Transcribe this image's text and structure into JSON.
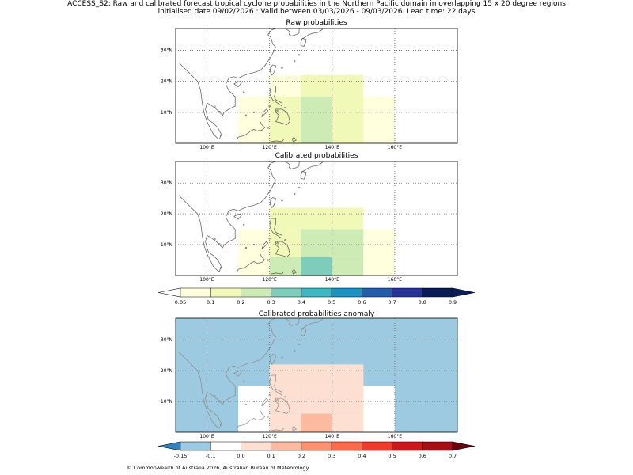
{
  "header": {
    "line1": "ACCESS_S2: Raw and calibrated forecast tropical cyclone probabilities in the Northern Pacific domain in overlapping 15 x 20 degree regions",
    "line2": "initialised date 09/02/2026 :  Valid between 03/03/2026 - 09/03/2026. Lead time: 22 days"
  },
  "colors": {
    "prob": [
      "#ffffdd",
      "#f0f9b8",
      "#cdebb4",
      "#7ecdbb",
      "#40b5c4",
      "#1d91c0",
      "#225ea8",
      "#253494",
      "#081d58"
    ],
    "anom": [
      "#3182bd",
      "#9ecae1",
      "#ffffff",
      "#fee0d2",
      "#fcbba1",
      "#fc9272",
      "#fb6a4a",
      "#ef3b2c",
      "#cb181d",
      "#a50f15",
      "#67000d"
    ],
    "ocean_anom": "#3182bd",
    "coast": "#555555"
  },
  "map_axes": {
    "lon_labels": [
      "100°E",
      "120°E",
      "140°E",
      "160°E"
    ],
    "lat_labels": [
      "10°N",
      "20°N",
      "30°N"
    ]
  },
  "chart_data": [
    {
      "type": "heatmap",
      "title": "Raw probabilities",
      "lon_range": [
        90,
        180
      ],
      "lat_range": [
        0,
        37
      ],
      "cells": [
        {
          "lon": [
            110,
            125
          ],
          "lat": [
            0,
            15
          ],
          "value": 0.05
        },
        {
          "lon": [
            120,
            130
          ],
          "lat": [
            15,
            22
          ],
          "value": 0.05
        },
        {
          "lon": [
            120,
            130
          ],
          "lat": [
            0,
            15
          ],
          "value": 0.1
        },
        {
          "lon": [
            130,
            150
          ],
          "lat": [
            15,
            22
          ],
          "value": 0.1
        },
        {
          "lon": [
            130,
            140
          ],
          "lat": [
            0,
            15
          ],
          "value": 0.2
        },
        {
          "lon": [
            140,
            150
          ],
          "lat": [
            0,
            15
          ],
          "value": 0.1
        },
        {
          "lon": [
            150,
            160
          ],
          "lat": [
            0,
            15
          ],
          "value": 0.05
        }
      ]
    },
    {
      "type": "heatmap",
      "title": "Calibrated probabilities",
      "lon_range": [
        90,
        180
      ],
      "lat_range": [
        0,
        37
      ],
      "cells": [
        {
          "lon": [
            110,
            120
          ],
          "lat": [
            0,
            15
          ],
          "value": 0.05
        },
        {
          "lon": [
            120,
            150
          ],
          "lat": [
            15,
            22
          ],
          "value": 0.1
        },
        {
          "lon": [
            120,
            130
          ],
          "lat": [
            0,
            15
          ],
          "value": 0.1
        },
        {
          "lon": [
            130,
            150
          ],
          "lat": [
            6,
            15
          ],
          "value": 0.2
        },
        {
          "lon": [
            120,
            130
          ],
          "lat": [
            0,
            6
          ],
          "value": 0.2
        },
        {
          "lon": [
            130,
            140
          ],
          "lat": [
            0,
            6
          ],
          "value": 0.3
        },
        {
          "lon": [
            140,
            150
          ],
          "lat": [
            0,
            6
          ],
          "value": 0.2
        },
        {
          "lon": [
            150,
            160
          ],
          "lat": [
            0,
            15
          ],
          "value": 0.05
        }
      ]
    },
    {
      "type": "heatmap",
      "title": "Calibrated probabilities anomaly",
      "lon_range": [
        90,
        180
      ],
      "lat_range": [
        0,
        37
      ],
      "background_value": -0.15,
      "cells": [
        {
          "lon": [
            120,
            150
          ],
          "lat": [
            15,
            22
          ],
          "value": 0.0
        },
        {
          "lon": [
            110,
            120
          ],
          "lat": [
            0,
            15
          ],
          "value": -0.1
        },
        {
          "lon": [
            120,
            130
          ],
          "lat": [
            6,
            15
          ],
          "value": 0.0
        },
        {
          "lon": [
            120,
            130
          ],
          "lat": [
            0,
            6
          ],
          "value": 0.05
        },
        {
          "lon": [
            130,
            150
          ],
          "lat": [
            6,
            15
          ],
          "value": 0.05
        },
        {
          "lon": [
            130,
            140
          ],
          "lat": [
            0,
            6
          ],
          "value": 0.15
        },
        {
          "lon": [
            140,
            150
          ],
          "lat": [
            0,
            6
          ],
          "value": 0.05
        },
        {
          "lon": [
            150,
            160
          ],
          "lat": [
            0,
            15
          ],
          "value": -0.1
        }
      ]
    }
  ],
  "colorbars": {
    "prob": {
      "ticks": [
        "0.05",
        "0.1",
        "0.2",
        "0.3",
        "0.4",
        "0.5",
        "0.6",
        "0.7",
        "0.8",
        "0.9"
      ]
    },
    "anom": {
      "ticks": [
        "-0.15",
        "-0.1",
        "0.0",
        "0.1",
        "0.2",
        "0.3",
        "0.4",
        "0.5",
        "0.6",
        "0.7"
      ]
    }
  },
  "footer": {
    "copyright": "© Commonwealth of Australia 2026, Australian Bureau of Meteorology"
  }
}
